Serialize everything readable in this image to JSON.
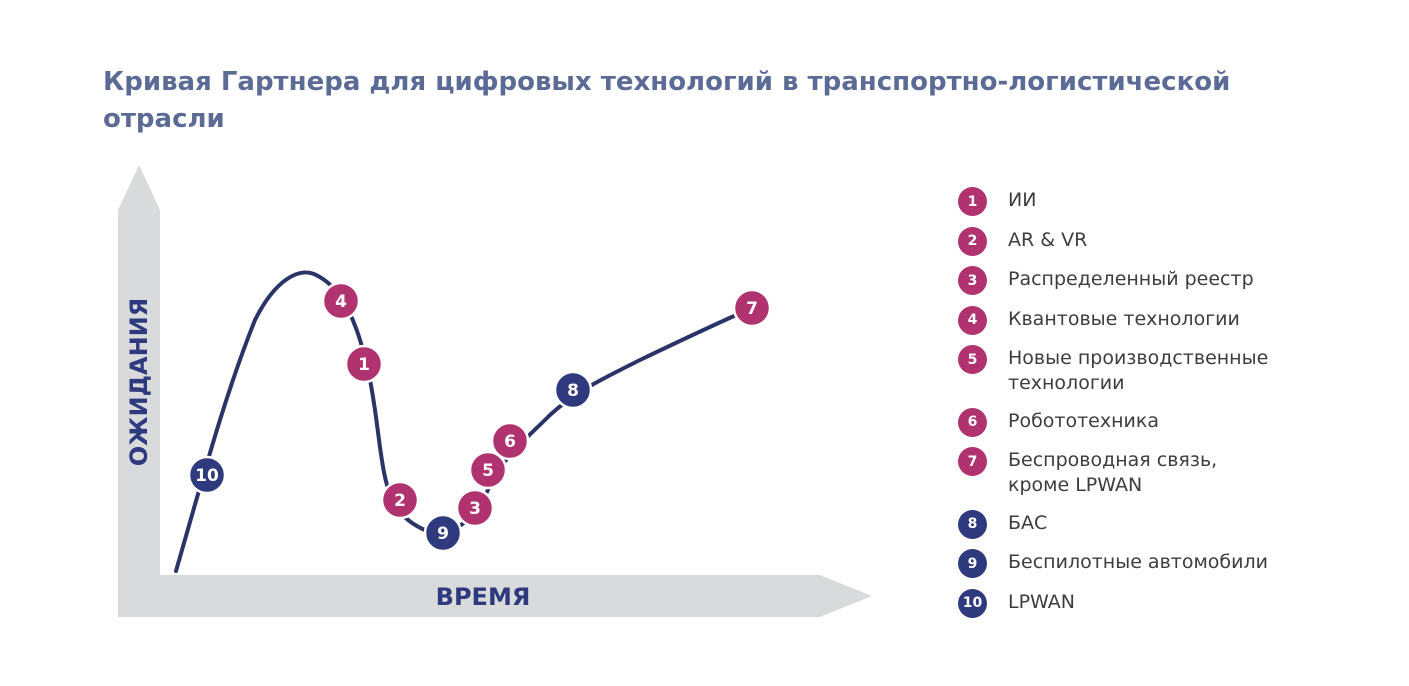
{
  "title": "Кривая Гартнера для цифровых технологий в транспортно-логистической отрасли",
  "colors": {
    "title": "#5c6b96",
    "axis_fill": "#d9dadc",
    "axis_label": "#2e3a7d",
    "curve": "#2a3466",
    "magenta": "#b0336f",
    "navy": "#2e3a7d"
  },
  "axes": {
    "x_label": "ВРЕМЯ",
    "y_label": "ОЖИДАНИЯ"
  },
  "markers": [
    {
      "id": "1",
      "color": "magenta"
    },
    {
      "id": "2",
      "color": "magenta"
    },
    {
      "id": "3",
      "color": "magenta"
    },
    {
      "id": "4",
      "color": "magenta"
    },
    {
      "id": "5",
      "color": "magenta"
    },
    {
      "id": "6",
      "color": "magenta"
    },
    {
      "id": "7",
      "color": "magenta"
    },
    {
      "id": "8",
      "color": "navy"
    },
    {
      "id": "9",
      "color": "navy"
    },
    {
      "id": "10",
      "color": "navy"
    }
  ],
  "legend": [
    {
      "num": "1",
      "label": "ИИ",
      "color": "magenta"
    },
    {
      "num": "2",
      "label": "AR & VR",
      "color": "magenta"
    },
    {
      "num": "3",
      "label": "Распределенный реестр",
      "color": "magenta"
    },
    {
      "num": "4",
      "label": "Квантовые технологии",
      "color": "magenta"
    },
    {
      "num": "5",
      "label": "Новые производственные технологии",
      "color": "magenta"
    },
    {
      "num": "6",
      "label": "Робототехника",
      "color": "magenta"
    },
    {
      "num": "7",
      "label": "Беспроводная связь, кроме LPWAN",
      "color": "magenta"
    },
    {
      "num": "8",
      "label": "БАС",
      "color": "navy"
    },
    {
      "num": "9",
      "label": "Беспилотные автомобили",
      "color": "navy"
    },
    {
      "num": "10",
      "label": "LPWAN",
      "color": "navy"
    }
  ]
}
